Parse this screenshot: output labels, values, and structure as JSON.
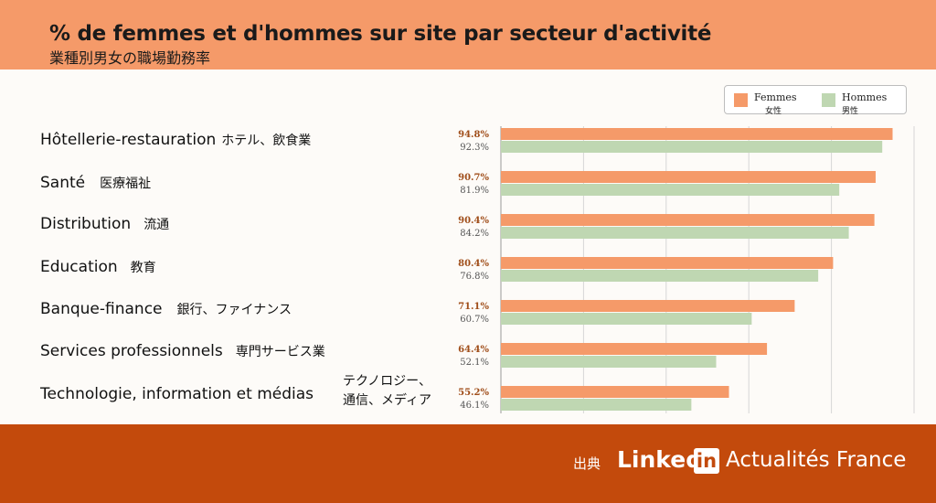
{
  "header": {
    "title": "% de femmes et d'hommes sur site par secteur d'activité",
    "subtitle": "業種別男女の職場勤務率"
  },
  "legend": {
    "female_label": "Femmes",
    "female_sub": "女性",
    "male_label": "Hommes",
    "male_sub": "男性"
  },
  "colors": {
    "female": "#f59a69",
    "male": "#bfd7b2",
    "header": "#f59a69",
    "footer": "#c34a0c",
    "female_value_text": "#a04e1a",
    "male_value_text": "#555555"
  },
  "categories": [
    {
      "fr": "Hôtellerie-restauration",
      "jp": "ホテル、飲食業"
    },
    {
      "fr": "Santé",
      "jp": "医療福祉"
    },
    {
      "fr": "Distribution",
      "jp": "流通"
    },
    {
      "fr": "Education",
      "jp": "教育"
    },
    {
      "fr": "Banque-finance",
      "jp": "銀行、ファイナンス"
    },
    {
      "fr": "Services professionnels",
      "jp": "専門サービス業"
    },
    {
      "fr": "Technologie, information et médias",
      "jp": "テクノロジー、",
      "jp2": "通信、メディア"
    }
  ],
  "chart_data": {
    "type": "bar",
    "orientation": "horizontal",
    "title": "% de femmes et d'hommes sur site par secteur d'activité",
    "categories": [
      "Hôtellerie-restauration",
      "Santé",
      "Distribution",
      "Education",
      "Banque-finance",
      "Services professionnels",
      "Technologie, information et médias"
    ],
    "series": [
      {
        "name": "Femmes",
        "values": [
          94.8,
          90.7,
          90.4,
          80.4,
          71.1,
          64.4,
          55.2
        ],
        "labels": [
          "94.8%",
          "90.7%",
          "90.4%",
          "80.4%",
          "71.1%",
          "64.4%",
          "55.2%"
        ]
      },
      {
        "name": "Hommes",
        "values": [
          92.3,
          81.9,
          84.2,
          76.8,
          60.7,
          52.1,
          46.1
        ],
        "labels": [
          "92.3%",
          "81.9%",
          "84.2%",
          "76.8%",
          "60.7%",
          "52.1%",
          "46.1%"
        ]
      }
    ],
    "xlim": [
      0,
      100
    ],
    "grid": true,
    "legend": "top-right"
  },
  "footer": {
    "source_label": "出典",
    "brand_linked": "Linked",
    "brand_in": "in",
    "brand_rest": "Actualités France"
  }
}
